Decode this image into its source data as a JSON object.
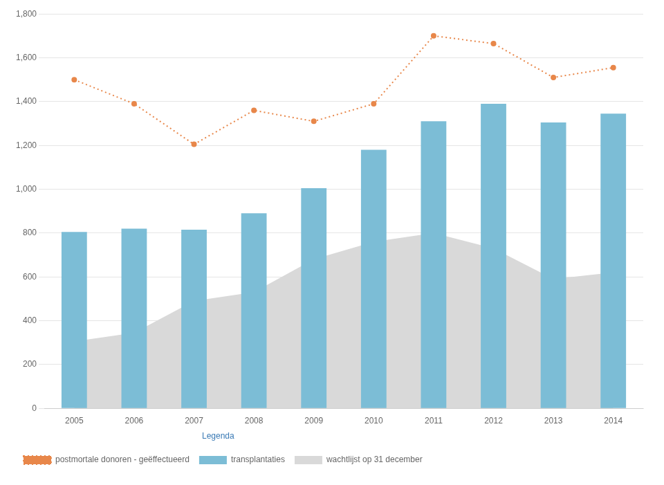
{
  "chart_data": {
    "type": "bar",
    "categories": [
      "2005",
      "2006",
      "2007",
      "2008",
      "2009",
      "2010",
      "2011",
      "2012",
      "2013",
      "2014"
    ],
    "series": [
      {
        "name": "transplantaties",
        "type": "bar",
        "color": "#7cbdd6",
        "values": [
          805,
          820,
          815,
          890,
          1005,
          1180,
          1310,
          1390,
          1305,
          1345
        ]
      },
      {
        "name": "wachtlijst op 31 december",
        "type": "area",
        "color": "#d9d9d9",
        "values": [
          305,
          345,
          490,
          530,
          680,
          760,
          800,
          730,
          590,
          620
        ]
      },
      {
        "name": "postmortale donoren - geëffectueerd",
        "type": "line",
        "color": "#e8874a",
        "line_style": "dotted",
        "marker": "circle",
        "values": [
          1500,
          1390,
          1205,
          1360,
          1310,
          1390,
          1700,
          1665,
          1510,
          1555
        ]
      }
    ],
    "ylim": [
      0,
      1800
    ],
    "yticks": [
      0,
      200,
      400,
      600,
      800,
      1000,
      1200,
      1400,
      1600,
      1800
    ],
    "grid": true,
    "legend": "bottom",
    "legend_title": "Legenda"
  }
}
